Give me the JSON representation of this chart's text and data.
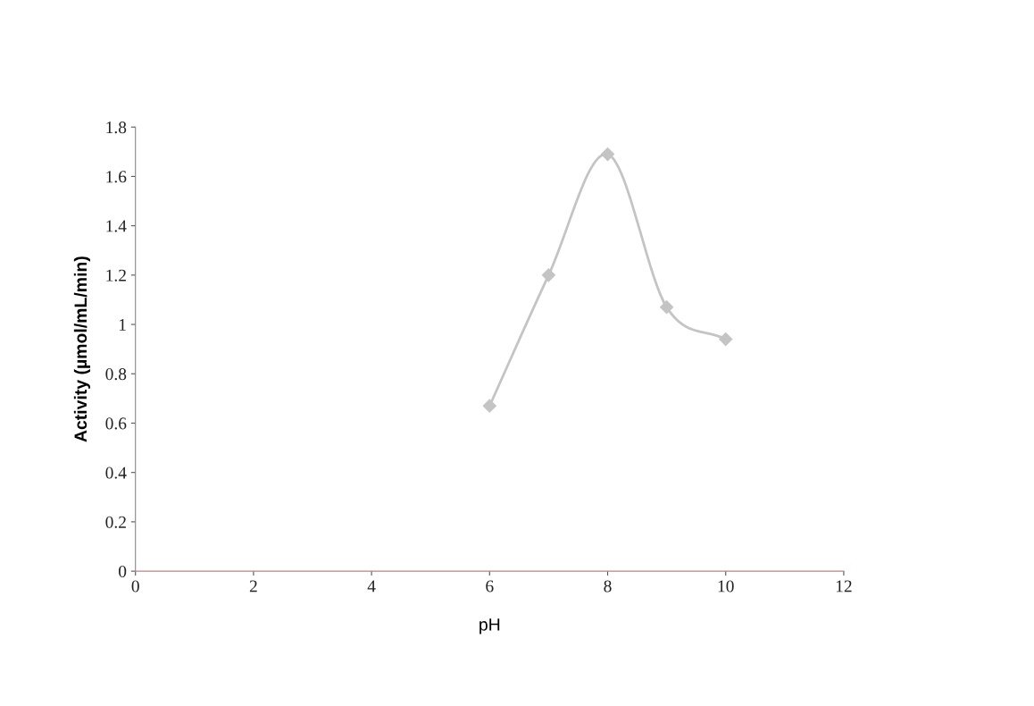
{
  "chart_data": {
    "type": "line",
    "xlabel": "pH",
    "ylabel": "Activity (µmol/mL/min)",
    "x": [
      6,
      7,
      8,
      9,
      10
    ],
    "series": [
      {
        "color": "#c4c4c4",
        "values": [
          0.67,
          1.2,
          1.69,
          1.07,
          0.94
        ]
      }
    ],
    "xlim": [
      0,
      12
    ],
    "xticks": [
      0,
      2,
      4,
      6,
      8,
      10,
      12
    ],
    "ylim": [
      0,
      1.8
    ],
    "yticks": [
      0,
      0.2,
      0.4,
      0.6,
      0.8,
      1,
      1.2,
      1.4,
      1.6,
      1.8
    ],
    "marker": "diamond",
    "line_style": "solid",
    "grid": false,
    "legend": false
  }
}
